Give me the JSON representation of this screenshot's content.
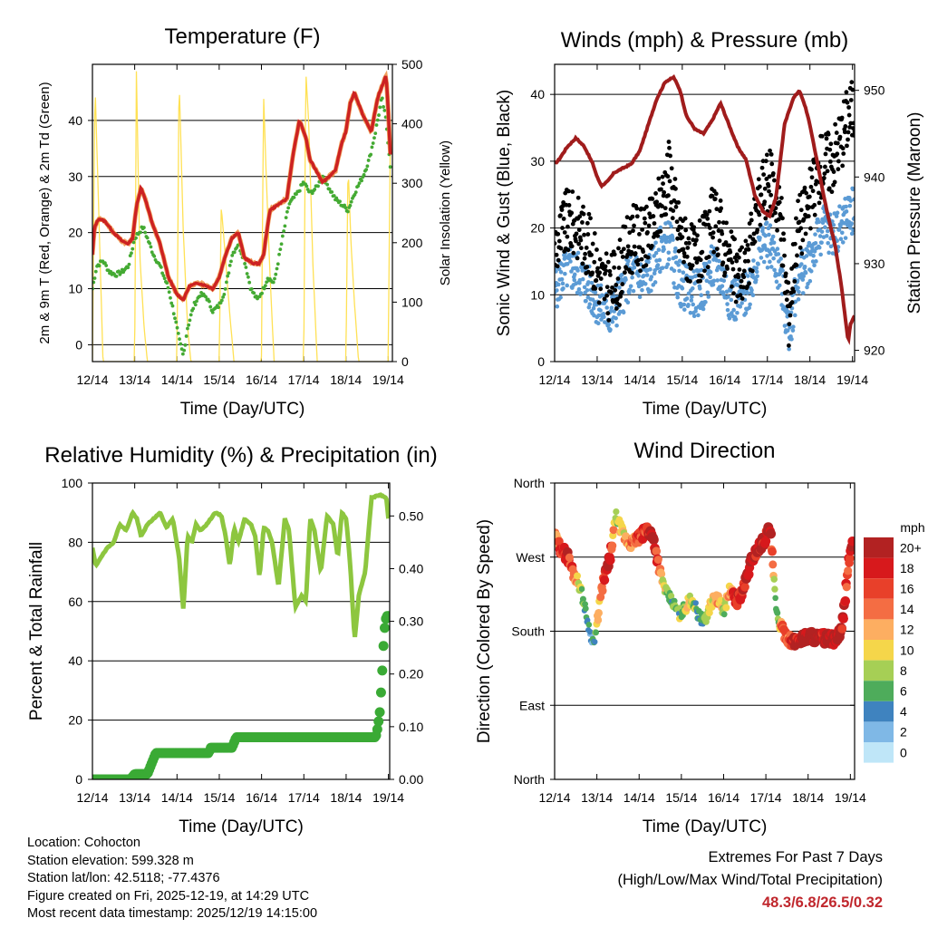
{
  "chart_data": [
    {
      "type": "line",
      "title": "Temperature (F)",
      "xlabel": "Time (Day/UTC)",
      "ylabel": "2m & 9m T (Red, Orange) & 2m Td (Green)",
      "ylabel_right": "Solar Insolation (Yellow)",
      "x_ticks": [
        "12/14",
        "13/14",
        "14/14",
        "15/14",
        "16/14",
        "17/14",
        "18/14",
        "19/14"
      ],
      "xlim": [
        0,
        7.1
      ],
      "ylim": [
        -3,
        50
      ],
      "y_ticks": [
        0,
        10,
        20,
        30,
        40
      ],
      "y_ticks_right": [
        0,
        100,
        200,
        300,
        400,
        500
      ],
      "ylim_right": [
        0,
        500
      ],
      "colors": {
        "temp": "#cc2222",
        "temp9": "#ee8833",
        "dew": "#44aa33",
        "solar": "#ffe155"
      },
      "series": [
        {
          "name": "2m T",
          "x": [
            0,
            0.05,
            0.15,
            0.3,
            0.5,
            0.7,
            0.85,
            0.95,
            1.05,
            1.15,
            1.25,
            1.4,
            1.6,
            1.8,
            2.0,
            2.15,
            2.3,
            2.5,
            2.7,
            2.85,
            3.0,
            3.15,
            3.3,
            3.45,
            3.6,
            3.8,
            3.95,
            4.05,
            4.2,
            4.4,
            4.6,
            4.75,
            4.9,
            5.05,
            5.15,
            5.3,
            5.45,
            5.6,
            5.75,
            5.9,
            6.0,
            6.1,
            6.2,
            6.4,
            6.6,
            6.75,
            6.85,
            6.95,
            7.0,
            7.05
          ],
          "values": [
            16,
            21,
            22.5,
            22,
            20,
            18.5,
            18,
            19,
            25,
            28,
            26,
            22,
            18,
            12,
            9,
            8,
            10.5,
            11,
            10.5,
            10,
            12,
            16,
            19,
            20,
            15.5,
            14.5,
            14.5,
            16,
            24,
            25,
            26,
            34,
            40,
            37,
            33,
            31,
            29,
            30,
            31,
            36,
            38,
            43,
            45,
            41,
            38,
            44,
            46,
            48,
            42,
            34
          ]
        },
        {
          "name": "2m Td",
          "x": [
            0,
            0.1,
            0.25,
            0.4,
            0.55,
            0.7,
            0.85,
            1.0,
            1.1,
            1.2,
            1.3,
            1.45,
            1.6,
            1.8,
            1.95,
            2.05,
            2.15,
            2.25,
            2.4,
            2.55,
            2.7,
            2.85,
            3.0,
            3.15,
            3.3,
            3.45,
            3.6,
            3.75,
            3.9,
            4.05,
            4.15,
            4.3,
            4.5,
            4.65,
            4.85,
            5.0,
            5.15,
            5.3,
            5.45,
            5.6,
            5.75,
            5.9,
            6.05,
            6.2,
            6.4,
            6.55,
            6.7,
            6.85,
            6.95,
            7.05
          ],
          "values": [
            10,
            14,
            15,
            13,
            12.5,
            13,
            14,
            19,
            20,
            21,
            19,
            16,
            14,
            10,
            5,
            1,
            -2,
            3,
            7,
            9,
            8.5,
            6,
            7,
            10,
            16,
            18,
            15,
            10,
            8,
            10,
            12,
            11,
            19,
            25,
            27,
            29,
            27,
            28,
            30,
            28,
            26,
            25,
            24,
            27,
            30,
            33,
            38,
            44,
            40,
            32
          ]
        },
        {
          "name": "Solar Insolation",
          "axis": "right",
          "x": [
            0,
            0.06,
            0.15,
            0.25,
            1.0,
            1.04,
            1.12,
            1.22,
            1.3,
            2.0,
            2.05,
            2.15,
            2.25,
            2.33,
            3.0,
            3.05,
            3.12,
            3.25,
            3.35,
            4.0,
            4.05,
            4.12,
            4.2,
            4.3,
            5.0,
            5.05,
            5.12,
            5.22,
            5.32,
            6.0,
            6.05,
            6.12,
            6.2,
            6.3,
            7.0,
            7.05
          ],
          "values": [
            0,
            470,
            250,
            0,
            0,
            490,
            180,
            60,
            0,
            0,
            480,
            220,
            60,
            0,
            0,
            260,
            200,
            80,
            0,
            0,
            450,
            300,
            150,
            0,
            0,
            490,
            400,
            160,
            0,
            0,
            330,
            200,
            100,
            0,
            0,
            370
          ]
        }
      ]
    },
    {
      "type": "line",
      "title": "Winds (mph) & Pressure (mb)",
      "xlabel": "Time (Day/UTC)",
      "ylabel": "Sonic Wind & Gust (Blue, Black)",
      "ylabel_right": "Station Pressure (Maroon)",
      "x_ticks": [
        "12/14",
        "13/14",
        "14/14",
        "15/14",
        "16/14",
        "17/14",
        "18/14",
        "19/14"
      ],
      "xlim": [
        0,
        7.05
      ],
      "ylim": [
        0,
        44.5
      ],
      "y_ticks": [
        0,
        10,
        20,
        30,
        40
      ],
      "y_ticks_right": [
        920,
        930,
        940,
        950
      ],
      "ylim_right": [
        918.7,
        953
      ],
      "colors": {
        "wind": "#5b9bd5",
        "gust": "#000000",
        "pressure": "#a01c1c"
      },
      "series": [
        {
          "name": "Sonic Wind",
          "x": [
            0,
            0.3,
            0.6,
            0.9,
            1.1,
            1.3,
            1.5,
            1.7,
            1.9,
            2.1,
            2.3,
            2.5,
            2.7,
            2.9,
            3.1,
            3.3,
            3.5,
            3.7,
            3.9,
            4.1,
            4.3,
            4.5,
            4.7,
            4.9,
            5.1,
            5.3,
            5.5,
            5.7,
            5.9,
            6.1,
            6.3,
            6.5,
            6.7,
            6.9,
            7.05
          ],
          "values": [
            11,
            14,
            13,
            10,
            8,
            7,
            9,
            12,
            13,
            12,
            14,
            17,
            18,
            12,
            11,
            10,
            11,
            14,
            13,
            10,
            9,
            10,
            14,
            18,
            17,
            13,
            4,
            12,
            14,
            17,
            20,
            19,
            20,
            22,
            23
          ]
        },
        {
          "name": "Gust",
          "x": [
            0,
            0.3,
            0.6,
            0.9,
            1.1,
            1.3,
            1.5,
            1.7,
            1.9,
            2.1,
            2.3,
            2.5,
            2.7,
            2.9,
            3.1,
            3.3,
            3.5,
            3.7,
            3.9,
            4.1,
            4.3,
            4.5,
            4.7,
            4.9,
            5.1,
            5.3,
            5.5,
            5.7,
            5.9,
            6.1,
            6.3,
            6.5,
            6.7,
            6.9,
            7.05
          ],
          "values": [
            17,
            21,
            20,
            16,
            12,
            11,
            13,
            17,
            19,
            18,
            20,
            24,
            29,
            20,
            17,
            15,
            17,
            21,
            20,
            15,
            13,
            14,
            20,
            26,
            27,
            22,
            7,
            20,
            22,
            26,
            30,
            30,
            33,
            37,
            38
          ]
        },
        {
          "name": "Station Pressure",
          "axis": "right",
          "x": [
            0,
            0.1,
            0.3,
            0.5,
            0.7,
            0.9,
            1.0,
            1.1,
            1.25,
            1.4,
            1.6,
            1.8,
            2.0,
            2.2,
            2.4,
            2.6,
            2.8,
            2.95,
            3.1,
            3.3,
            3.5,
            3.7,
            3.9,
            4.1,
            4.3,
            4.5,
            4.7,
            4.9,
            5.05,
            5.2,
            5.4,
            5.6,
            5.75,
            5.9,
            6.0,
            6.2,
            6.4,
            6.6,
            6.75,
            6.85,
            6.9,
            6.95,
            7.05
          ],
          "values": [
            941.5,
            942,
            943.5,
            944.5,
            943.5,
            941.5,
            940,
            939,
            939.5,
            940.5,
            941,
            941.5,
            943,
            946,
            949,
            951,
            951.5,
            950,
            947,
            945.5,
            945,
            946.5,
            948.5,
            946,
            943.5,
            942,
            938,
            936,
            935.5,
            937.5,
            946,
            949,
            950,
            948,
            946,
            941,
            936,
            932,
            927,
            923,
            921,
            923,
            924
          ]
        }
      ]
    },
    {
      "type": "line",
      "title": "Relative Humidity (%) & Precipitation (in)",
      "xlabel": "Time (Day/UTC)",
      "ylabel": "Percent & Total Rainfall",
      "x_ticks": [
        "12/14",
        "13/14",
        "14/14",
        "15/14",
        "16/14",
        "17/14",
        "18/14",
        "19/14"
      ],
      "xlim": [
        0,
        7.03
      ],
      "ylim": [
        0,
        100
      ],
      "y_ticks": [
        0,
        20,
        40,
        60,
        80,
        100
      ],
      "y_ticks_right": [
        "0.00",
        "0.10",
        "0.20",
        "0.30",
        "0.40",
        "0.50"
      ],
      "ylim_right": [
        0,
        0.5625
      ],
      "colors": {
        "rh": "#8dc63f",
        "precip": "#3aaa35"
      },
      "series": [
        {
          "name": "Relative Humidity",
          "x": [
            0,
            0.08,
            0.2,
            0.35,
            0.5,
            0.65,
            0.8,
            0.95,
            1.05,
            1.15,
            1.3,
            1.45,
            1.6,
            1.75,
            1.9,
            2.05,
            2.15,
            2.25,
            2.35,
            2.45,
            2.55,
            2.7,
            2.9,
            3.05,
            3.15,
            3.25,
            3.35,
            3.45,
            3.6,
            3.75,
            3.85,
            3.95,
            4.05,
            4.15,
            4.25,
            4.4,
            4.55,
            4.65,
            4.8,
            4.95,
            5.05,
            5.15,
            5.25,
            5.4,
            5.55,
            5.7,
            5.8,
            5.9,
            6.0,
            6.1,
            6.2,
            6.3,
            6.45,
            6.6,
            6.8,
            6.95,
            7.0
          ],
          "values": [
            78,
            72,
            75,
            78,
            80,
            86,
            84,
            90,
            88,
            82,
            86,
            88,
            90,
            85,
            88,
            75,
            57,
            82,
            80,
            86,
            84,
            86,
            90,
            89,
            82,
            72,
            85,
            80,
            88,
            86,
            82,
            68,
            85,
            84,
            80,
            65,
            88,
            84,
            58,
            62,
            60,
            88,
            84,
            70,
            89,
            86,
            75,
            90,
            88,
            72,
            47,
            62,
            70,
            95,
            96,
            95,
            88
          ]
        },
        {
          "name": "Total Rainfall",
          "axis": "right",
          "x": [
            0,
            0.9,
            1.0,
            1.1,
            1.3,
            1.4,
            1.5,
            1.55,
            2.3,
            2.5,
            2.75,
            2.8,
            3.3,
            3.4,
            3.45,
            6.7,
            6.75,
            6.8,
            6.85,
            6.9,
            6.95,
            7.0
          ],
          "values": [
            0,
            0,
            0.01,
            0.01,
            0.01,
            0.03,
            0.05,
            0.05,
            0.05,
            0.05,
            0.05,
            0.06,
            0.06,
            0.08,
            0.08,
            0.08,
            0.1,
            0.13,
            0.2,
            0.28,
            0.31,
            0.31
          ]
        }
      ]
    },
    {
      "type": "scatter",
      "title": "Wind Direction",
      "xlabel": "Time (Day/UTC)",
      "ylabel": "Direction (Colored By Speed)",
      "x_ticks": [
        "12/14",
        "13/14",
        "14/14",
        "15/14",
        "16/14",
        "17/14",
        "18/14",
        "19/14"
      ],
      "xlim": [
        0,
        7.1
      ],
      "ylim": [
        0,
        360
      ],
      "y_ticks": [
        0,
        90,
        180,
        270,
        360
      ],
      "y_tick_labels": [
        "North",
        "East",
        "South",
        "West",
        "North"
      ],
      "colorbar": {
        "title": "mph",
        "labels": [
          "20+",
          "18",
          "16",
          "14",
          "12",
          "10",
          "8",
          "6",
          "4",
          "2",
          "0"
        ],
        "colors": [
          "#b22222",
          "#d7191c",
          "#e8402a",
          "#f46d43",
          "#fdae61",
          "#f5d64a",
          "#a6cf55",
          "#4eac5b",
          "#3f83bf",
          "#7fb8e6",
          "#bfe6f8"
        ]
      },
      "x": [
        0,
        0.15,
        0.3,
        0.45,
        0.6,
        0.75,
        0.85,
        0.95,
        1.05,
        1.15,
        1.3,
        1.45,
        1.6,
        1.75,
        1.9,
        2.05,
        2.2,
        2.35,
        2.5,
        2.65,
        2.8,
        2.95,
        3.1,
        3.25,
        3.4,
        3.55,
        3.7,
        3.85,
        4.0,
        4.15,
        4.3,
        4.5,
        4.65,
        4.8,
        4.95,
        5.1,
        5.25,
        5.4,
        5.55,
        5.6,
        5.65,
        5.75,
        5.9,
        6.05,
        6.2,
        6.35,
        6.5,
        6.65,
        6.8,
        6.95,
        7.05
      ],
      "values": [
        295,
        280,
        272,
        250,
        235,
        200,
        175,
        165,
        210,
        240,
        265,
        320,
        300,
        285,
        290,
        295,
        305,
        290,
        250,
        225,
        215,
        200,
        210,
        220,
        200,
        190,
        215,
        220,
        205,
        230,
        215,
        235,
        265,
        280,
        290,
        305,
        200,
        180,
        170,
        168,
        165,
        170,
        172,
        175,
        172,
        172,
        170,
        170,
        180,
        260,
        290
      ],
      "speeds": [
        12,
        16,
        18,
        14,
        8,
        4,
        3,
        5,
        12,
        17,
        18,
        8,
        10,
        13,
        15,
        16,
        17,
        19,
        12,
        8,
        6,
        7,
        9,
        10,
        5,
        6,
        10,
        12,
        8,
        13,
        17,
        18,
        20,
        19,
        18,
        19,
        4,
        16,
        14,
        18,
        18,
        18,
        19,
        20,
        20,
        19,
        18,
        20,
        18,
        16,
        17
      ]
    }
  ],
  "info": {
    "location": "Location: Cohocton",
    "elevation": "Station elevation: 599.328 m",
    "latlon": "Station lat/lon: 42.5118; -77.4376",
    "created": "Figure created on Fri, 2025-12-19, at 14:29 UTC",
    "recent": "Most recent data timestamp: 2025/12/19 14:15:00"
  },
  "extremes": {
    "title": "Extremes For Past 7 Days",
    "subtitle": "(High/Low/Max Wind/Total Precipitation)",
    "values": "48.3/6.8/26.5/0.32"
  }
}
